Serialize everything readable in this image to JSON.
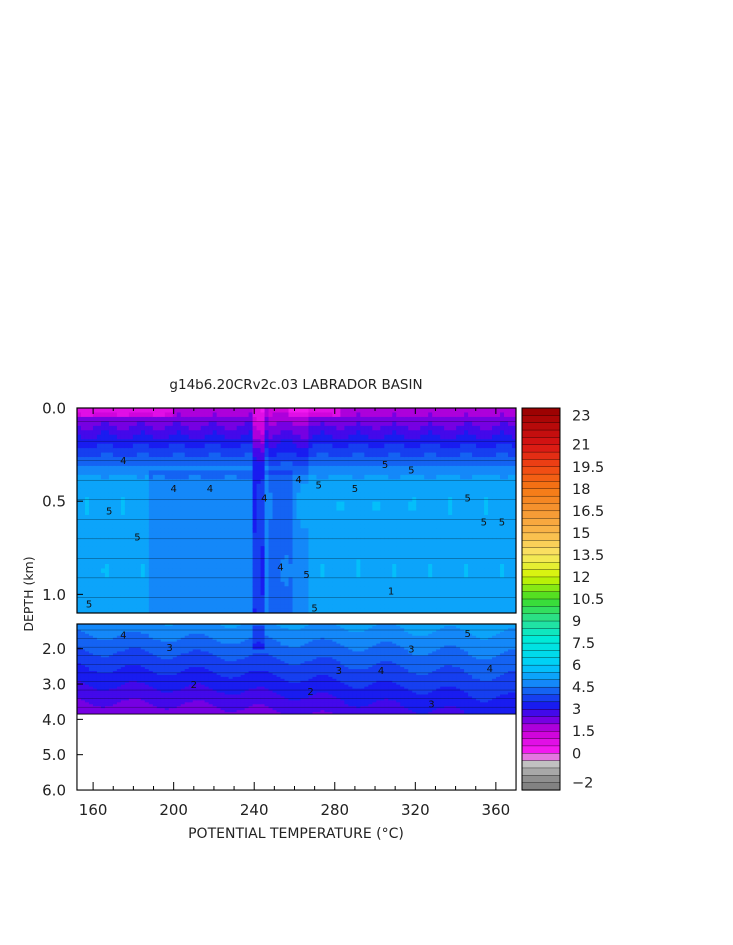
{
  "chart_data": {
    "type": "heatmap",
    "title": "g14b6.20CRv2c.03 LABRADOR BASIN",
    "xlabel": "POTENTIAL TEMPERATURE (°C)",
    "ylabel": "DEPTH (km)",
    "xlim": [
      152,
      370
    ],
    "x_ticks": [
      "160",
      "200",
      "240",
      "280",
      "320",
      "360"
    ],
    "upper_panel": {
      "ylim": [
        0.0,
        1.1
      ],
      "y_ticks": [
        "0.0",
        "0.5",
        "1.0"
      ]
    },
    "lower_panel": {
      "ylim": [
        1.3,
        6.0
      ],
      "y_ticks": [
        "2.0",
        "3.0",
        "4.0",
        "5.0",
        "6.0"
      ],
      "data_bottom": 3.85
    },
    "contour_labels": [
      {
        "text": "4",
        "x": 175,
        "y": 0.28
      },
      {
        "text": "4",
        "x": 200,
        "y": 0.43
      },
      {
        "text": "4",
        "x": 218,
        "y": 0.43
      },
      {
        "text": "4",
        "x": 245,
        "y": 0.48
      },
      {
        "text": "4",
        "x": 253,
        "y": 0.85
      },
      {
        "text": "4",
        "x": 262,
        "y": 0.38
      },
      {
        "text": "5",
        "x": 168,
        "y": 0.55
      },
      {
        "text": "5",
        "x": 182,
        "y": 0.69
      },
      {
        "text": "5",
        "x": 158,
        "y": 1.05
      },
      {
        "text": "5",
        "x": 272,
        "y": 0.41
      },
      {
        "text": "5",
        "x": 266,
        "y": 0.89
      },
      {
        "text": "5",
        "x": 270,
        "y": 1.07
      },
      {
        "text": "5",
        "x": 290,
        "y": 0.43
      },
      {
        "text": "5",
        "x": 305,
        "y": 0.3
      },
      {
        "text": "5",
        "x": 318,
        "y": 0.33
      },
      {
        "text": "5",
        "x": 346,
        "y": 0.48
      },
      {
        "text": "5",
        "x": 354,
        "y": 0.61
      },
      {
        "text": "5",
        "x": 363,
        "y": 0.61
      },
      {
        "text": "1",
        "x": 308,
        "y": 0.98
      },
      {
        "text": "4",
        "x": 175,
        "y": 1.6
      },
      {
        "text": "3",
        "x": 198,
        "y": 1.95
      },
      {
        "text": "2",
        "x": 210,
        "y": 3.0
      },
      {
        "text": "2",
        "x": 268,
        "y": 3.2
      },
      {
        "text": "3",
        "x": 282,
        "y": 2.6
      },
      {
        "text": "3",
        "x": 328,
        "y": 3.55
      },
      {
        "text": "4",
        "x": 303,
        "y": 2.6
      },
      {
        "text": "3",
        "x": 318,
        "y": 2.0
      },
      {
        "text": "5",
        "x": 346,
        "y": 1.55
      },
      {
        "text": "4",
        "x": 357,
        "y": 2.55
      }
    ],
    "colorbar": {
      "vmin": -2.5,
      "vmax": 23.5,
      "step": 0.5,
      "tick_labels": [
        "23",
        "21",
        "19.5",
        "18",
        "16.5",
        "15",
        "13.5",
        "12",
        "10.5",
        "9",
        "7.5",
        "6",
        "4.5",
        "3",
        "1.5",
        "0",
        "−2"
      ],
      "tick_values": [
        23,
        21,
        19.5,
        18,
        16.5,
        15,
        13.5,
        12,
        10.5,
        9,
        7.5,
        6,
        4.5,
        3,
        1.5,
        0,
        -2
      ]
    }
  }
}
